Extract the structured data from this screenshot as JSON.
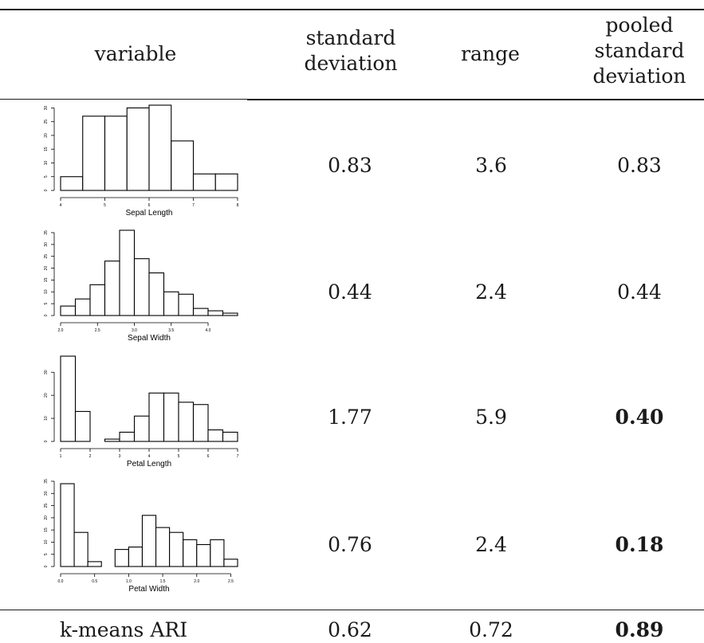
{
  "header": {
    "variable": "variable",
    "sd": [
      "standard",
      "deviation"
    ],
    "range": "range",
    "pooled": [
      "pooled",
      "standard",
      "deviation"
    ]
  },
  "rows": [
    {
      "variable": "Sepal Length",
      "sd": "0.83",
      "range": "3.6",
      "pooled": "0.83",
      "pooled_bold": false
    },
    {
      "variable": "Sepal Width",
      "sd": "0.44",
      "range": "2.4",
      "pooled": "0.44",
      "pooled_bold": false
    },
    {
      "variable": "Petal Length",
      "sd": "1.77",
      "range": "5.9",
      "pooled": "0.40",
      "pooled_bold": true
    },
    {
      "variable": "Petal Width",
      "sd": "0.76",
      "range": "2.4",
      "pooled": "0.18",
      "pooled_bold": true
    }
  ],
  "footer": {
    "label": "k-means ARI",
    "sd": "0.62",
    "range": "0.72",
    "pooled": "0.89",
    "pooled_bold": true
  },
  "chart_data": [
    {
      "type": "bar",
      "xlabel": "Sepal Length",
      "ylabel": "",
      "bin_edges": [
        4.0,
        4.5,
        5.0,
        5.5,
        6.0,
        6.5,
        7.0,
        7.5,
        8.0
      ],
      "values": [
        5,
        27,
        27,
        30,
        31,
        18,
        6,
        6
      ],
      "xticks": [
        4,
        5,
        6,
        7,
        8
      ],
      "xtick_labels": [
        "4",
        "5",
        "6",
        "7",
        "8"
      ],
      "yticks": [
        0,
        5,
        10,
        15,
        20,
        25,
        30
      ],
      "ylim": [
        0,
        31
      ]
    },
    {
      "type": "bar",
      "xlabel": "Sepal Width",
      "ylabel": "",
      "bin_edges": [
        2.0,
        2.2,
        2.4,
        2.6,
        2.8,
        3.0,
        3.2,
        3.4,
        3.6,
        3.8,
        4.0,
        4.2,
        4.4
      ],
      "values": [
        4,
        7,
        13,
        23,
        36,
        24,
        18,
        10,
        9,
        3,
        2,
        1
      ],
      "xticks": [
        2.0,
        2.5,
        3.0,
        3.5,
        4.0
      ],
      "xtick_labels": [
        "2.0",
        "2.5",
        "3.0",
        "3.5",
        "4.0"
      ],
      "yticks": [
        0,
        5,
        10,
        15,
        20,
        25,
        30,
        35
      ],
      "ylim": [
        0,
        36
      ]
    },
    {
      "type": "bar",
      "xlabel": "Petal Length",
      "ylabel": "",
      "bin_edges": [
        1.0,
        1.5,
        2.0,
        2.5,
        3.0,
        3.5,
        4.0,
        4.5,
        5.0,
        5.5,
        6.0,
        6.5,
        7.0
      ],
      "values": [
        37,
        13,
        0,
        1,
        4,
        11,
        21,
        21,
        17,
        16,
        5,
        4
      ],
      "xticks": [
        1,
        2,
        3,
        4,
        5,
        6,
        7
      ],
      "xtick_labels": [
        "1",
        "2",
        "3",
        "4",
        "5",
        "6",
        "7"
      ],
      "yticks": [
        0,
        10,
        20,
        30
      ],
      "ylim": [
        0,
        37
      ]
    },
    {
      "type": "bar",
      "xlabel": "Petal Width",
      "ylabel": "",
      "bin_edges": [
        0.0,
        0.2,
        0.4,
        0.6,
        0.8,
        1.0,
        1.2,
        1.4,
        1.6,
        1.8,
        2.0,
        2.2,
        2.4,
        2.6
      ],
      "values": [
        34,
        14,
        2,
        0,
        7,
        8,
        21,
        16,
        14,
        11,
        9,
        11,
        3
      ],
      "xticks": [
        0.0,
        0.5,
        1.0,
        1.5,
        2.0,
        2.5
      ],
      "xtick_labels": [
        "0.0",
        "0.5",
        "1.0",
        "1.5",
        "2.0",
        "2.5"
      ],
      "yticks": [
        0,
        5,
        10,
        15,
        20,
        25,
        30,
        35
      ],
      "ylim": [
        0,
        35
      ]
    }
  ]
}
